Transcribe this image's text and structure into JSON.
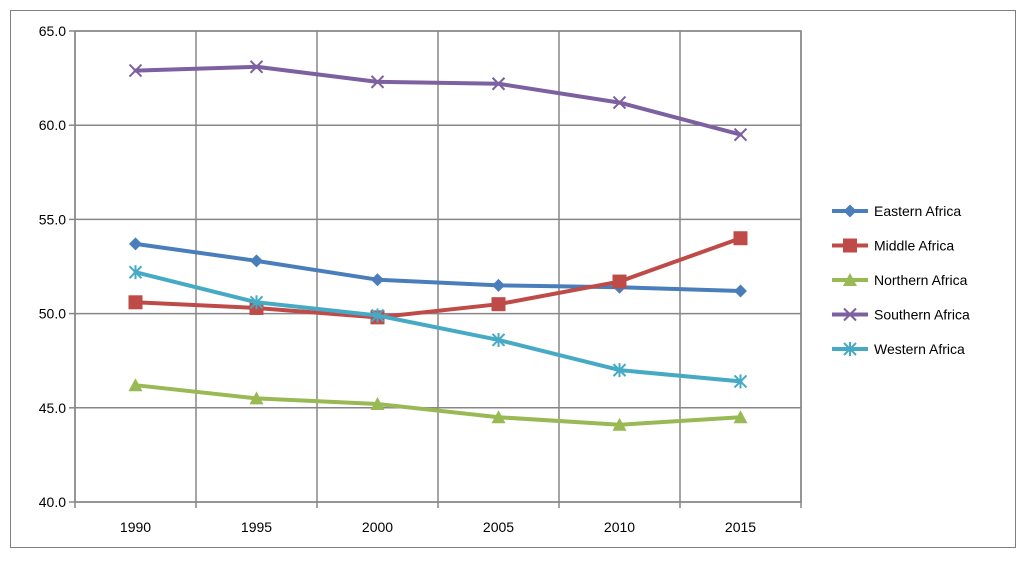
{
  "chart_data": {
    "type": "line",
    "title": "",
    "xlabel": "",
    "ylabel": "",
    "x": [
      "1990",
      "1995",
      "2000",
      "2005",
      "2010",
      "2015"
    ],
    "ylim": [
      40,
      65
    ],
    "yticks": [
      "40.0",
      "45.0",
      "50.0",
      "55.0",
      "60.0",
      "65.0"
    ],
    "grid": true,
    "legend_position": "right",
    "series": [
      {
        "name": "Eastern Africa",
        "values": [
          53.7,
          52.8,
          51.8,
          51.5,
          51.4,
          51.2
        ],
        "color": "#4a7ebb",
        "marker": "diamond"
      },
      {
        "name": "Middle Africa",
        "values": [
          50.6,
          50.3,
          49.8,
          50.5,
          51.7,
          54.0
        ],
        "color": "#be4b48",
        "marker": "square"
      },
      {
        "name": "Northern Africa",
        "values": [
          46.2,
          45.5,
          45.2,
          44.5,
          44.1,
          44.5
        ],
        "color": "#98b954",
        "marker": "triangle"
      },
      {
        "name": "Southern Africa",
        "values": [
          62.9,
          63.1,
          62.3,
          62.2,
          61.2,
          59.5
        ],
        "color": "#7d60a0",
        "marker": "x"
      },
      {
        "name": "Western Africa",
        "values": [
          52.2,
          50.6,
          49.9,
          48.6,
          47.0,
          46.4
        ],
        "color": "#46aac5",
        "marker": "star"
      }
    ]
  }
}
